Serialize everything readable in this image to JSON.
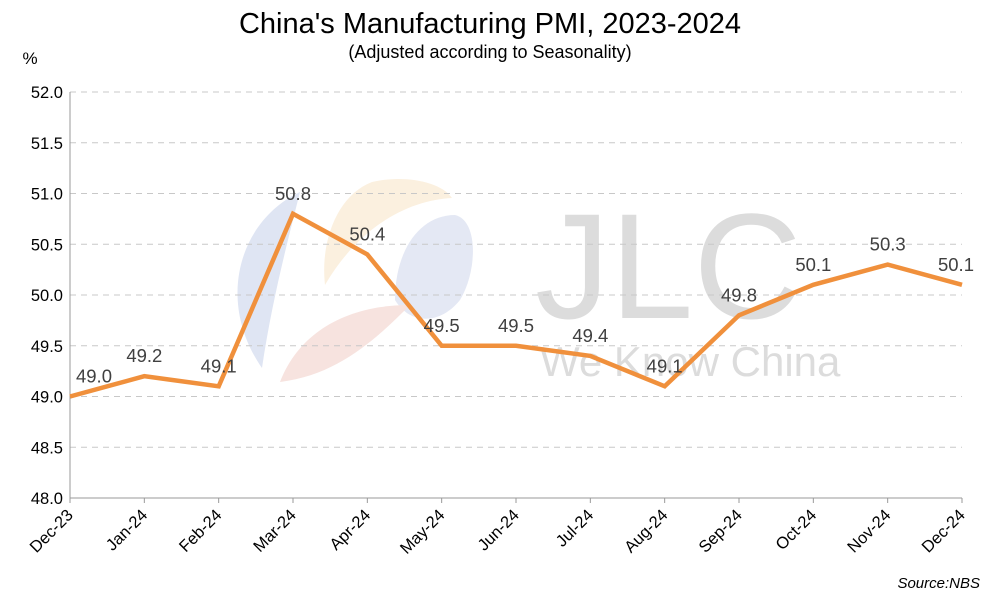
{
  "chart_data": {
    "type": "line",
    "title": "China's Manufacturing PMI, 2023-2024",
    "subtitle": "(Adjusted according to Seasonality)",
    "ylabel": "%",
    "ylim": [
      48.0,
      52.0
    ],
    "yticks": [
      "48.0",
      "48.5",
      "49.0",
      "49.5",
      "50.0",
      "50.5",
      "51.0",
      "51.5",
      "52.0"
    ],
    "categories": [
      "Dec-23",
      "Jan-24",
      "Feb-24",
      "Mar-24",
      "Apr-24",
      "May-24",
      "Jun-24",
      "Jul-24",
      "Aug-24",
      "Sep-24",
      "Oct-24",
      "Nov-24",
      "Dec-24"
    ],
    "series": [
      {
        "values": [
          49.0,
          49.2,
          49.1,
          50.8,
          50.4,
          49.5,
          49.5,
          49.4,
          49.1,
          49.8,
          50.1,
          50.3,
          50.1
        ],
        "labels": [
          "49.0",
          "49.2",
          "49.1",
          "50.8",
          "50.4",
          "49.5",
          "49.5",
          "49.4",
          "49.1",
          "49.8",
          "50.1",
          "50.3",
          "50.1"
        ],
        "color": "#f0903c"
      }
    ],
    "grid": true,
    "source": "Source:NBS"
  },
  "watermark": {
    "text": "JLC",
    "tagline": "We Know China",
    "colors": [
      "#dde3f2",
      "#fbeedb",
      "#f7e0dc"
    ]
  }
}
